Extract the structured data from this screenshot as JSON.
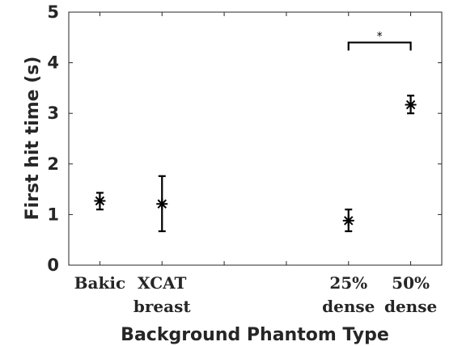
{
  "chart_data": {
    "type": "scatter",
    "title": "",
    "xlabel": "Background Phantom Type",
    "ylabel": "First hit time (s)",
    "ylim": [
      0,
      5
    ],
    "xlim": [
      0.5,
      6.5
    ],
    "yticks": [
      "0",
      "1",
      "2",
      "3",
      "4",
      "5"
    ],
    "x_tick_positions": [
      1,
      2,
      3,
      4,
      5,
      6
    ],
    "categories": [
      {
        "line1": "Bakic",
        "line2": "",
        "x": 1
      },
      {
        "line1": "XCAT",
        "line2": "breast",
        "x": 2
      },
      {
        "line1": "25%",
        "line2": "dense",
        "x": 5
      },
      {
        "line1": "50%",
        "line2": "dense",
        "x": 6
      }
    ],
    "series": [
      {
        "points": [
          {
            "x": 1,
            "y": 1.27,
            "low": 1.1,
            "high": 1.43
          },
          {
            "x": 2,
            "y": 1.21,
            "low": 0.67,
            "high": 1.76
          },
          {
            "x": 5,
            "y": 0.88,
            "low": 0.67,
            "high": 1.1
          },
          {
            "x": 6,
            "y": 3.17,
            "low": 3.0,
            "high": 3.35
          }
        ]
      }
    ],
    "grid": false,
    "significance": {
      "from": 5,
      "to": 6,
      "y": 4.4,
      "label": "*"
    }
  }
}
